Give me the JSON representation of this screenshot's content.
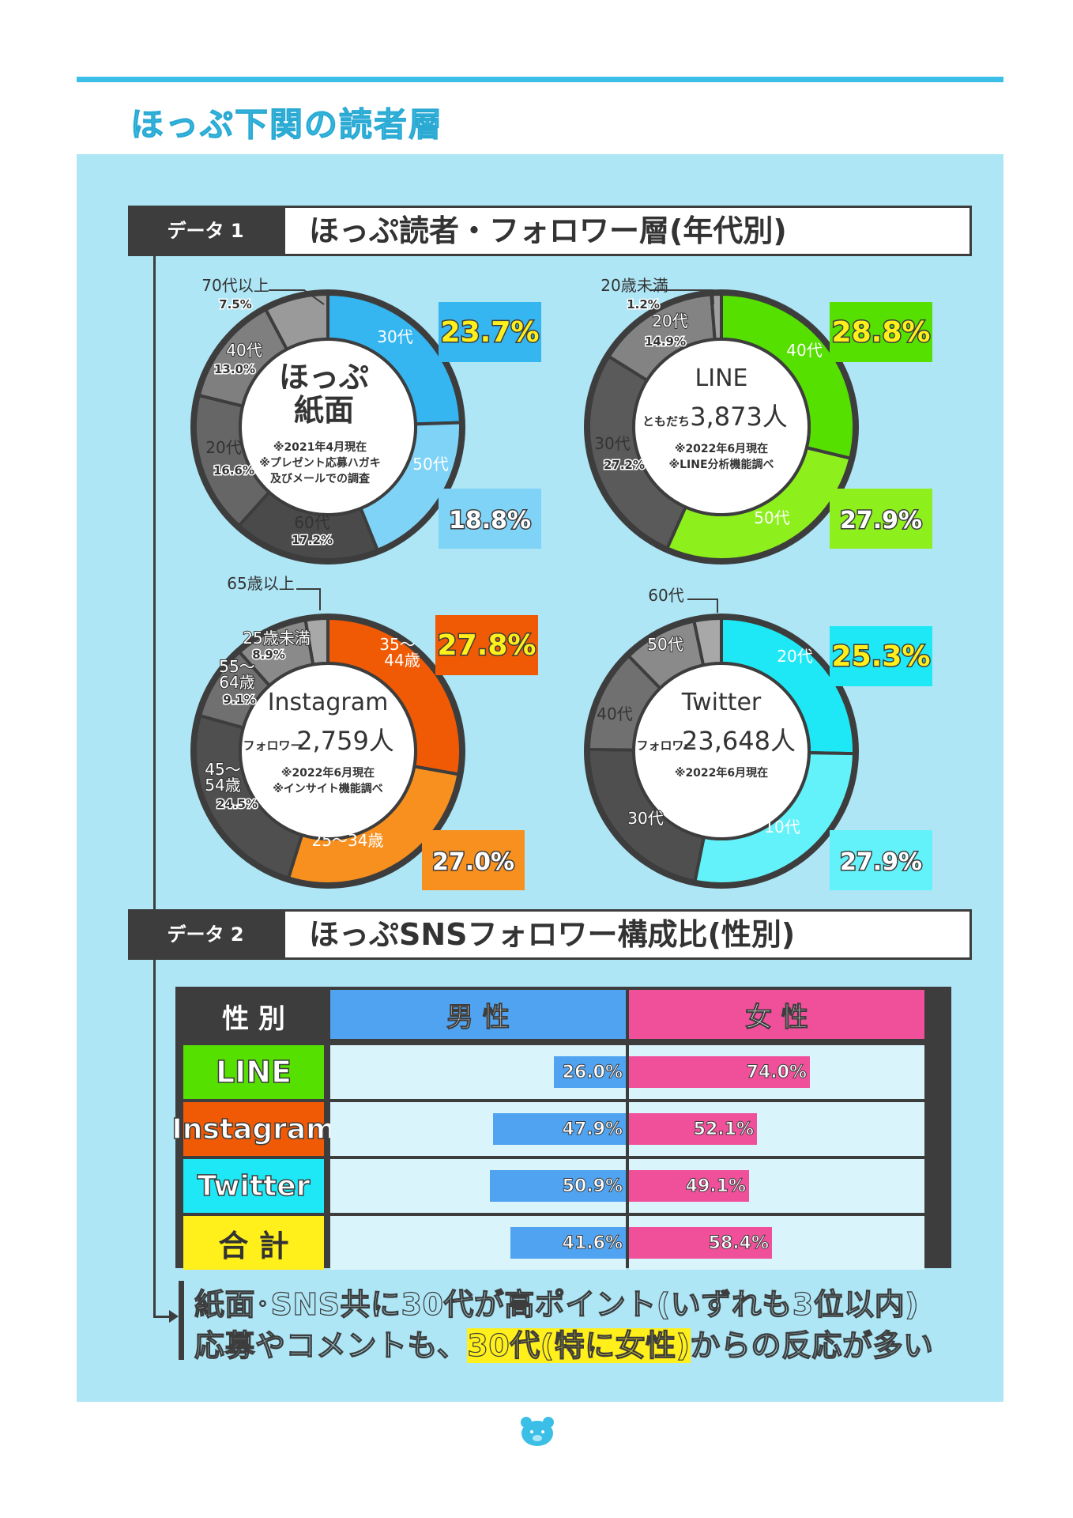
{
  "page": {
    "title": "ほっぷ下関の読者層"
  },
  "section1": {
    "tag": "データ 1",
    "title": "ほっぷ読者・フォロワー層(年代別)"
  },
  "section2": {
    "tag": "データ 2",
    "title": "ほっぷSNSフォロワー構成比(性別)"
  },
  "chart_data": [
    {
      "type": "pie",
      "id": "paper",
      "center": {
        "title": "ほっぷ\n紙面",
        "notes": [
          "※2021年4月現在",
          "※プレゼント応募ハガキ",
          "及びメールでの調査"
        ]
      },
      "slices": [
        {
          "label": "30代",
          "value": 23.7,
          "value_text": "23.7%",
          "color": "#35b6f0",
          "highlight": true,
          "highlight_color": "#ffef1a",
          "badge_bg": "#35b6f0"
        },
        {
          "label": "50代",
          "value": 18.8,
          "value_text": "18.8%",
          "color": "#7fd3f7",
          "highlight": true,
          "highlight_color": "#ffffff",
          "badge_bg": "#7fd3f7"
        },
        {
          "label": "60代",
          "value": 17.2,
          "value_text": "17.2%",
          "color": "#4a4a4a"
        },
        {
          "label": "20代",
          "value": 16.6,
          "value_text": "16.6%",
          "color": "#666666"
        },
        {
          "label": "40代",
          "value": 13.0,
          "value_text": "13.0%",
          "color": "#7f7f7f"
        },
        {
          "label": "70代以上",
          "value": 7.5,
          "value_text": "7.5%",
          "color": "#9a9a9a"
        }
      ]
    },
    {
      "type": "pie",
      "id": "line",
      "center": {
        "title": "LINE",
        "prefix": "ともだち",
        "count": "3,873人",
        "notes": [
          "※2022年6月現在",
          "※LINE分析機能調べ"
        ]
      },
      "slices": [
        {
          "label": "40代",
          "value": 28.8,
          "value_text": "28.8%",
          "color": "#55e000",
          "highlight": true,
          "highlight_color": "#ffef1a",
          "badge_bg": "#55e000"
        },
        {
          "label": "50代",
          "value": 27.9,
          "value_text": "27.9%",
          "color": "#8df01d",
          "highlight": true,
          "highlight_color": "#ffffff",
          "badge_bg": "#8df01d"
        },
        {
          "label": "30代",
          "value": 27.2,
          "value_text": "27.2%",
          "color": "#5a5a5a"
        },
        {
          "label": "20代",
          "value": 14.9,
          "value_text": "14.9%",
          "color": "#838383"
        },
        {
          "label": "20歳未満",
          "value": 1.2,
          "value_text": "1.2%",
          "color": "#a0a0a0"
        }
      ]
    },
    {
      "type": "pie",
      "id": "instagram",
      "center": {
        "title": "Instagram",
        "prefix": "フォロワー",
        "count": "2,759人",
        "notes": [
          "※2022年6月現在",
          "※インサイト機能調べ"
        ]
      },
      "slices": [
        {
          "label": "35～44歳",
          "value": 27.8,
          "value_text": "27.8%",
          "color": "#f05a05",
          "highlight": true,
          "highlight_color": "#ffef1a",
          "badge_bg": "#f05a05"
        },
        {
          "label": "25～34歳",
          "value": 27.0,
          "value_text": "27.0%",
          "color": "#f7901e",
          "highlight": true,
          "highlight_color": "#ffffff",
          "badge_bg": "#f7901e"
        },
        {
          "label": "45～54歳",
          "value": 24.5,
          "value_text": "24.5%",
          "color": "#4f4f4f"
        },
        {
          "label": "55～64歳",
          "value": 9.1,
          "value_text": "9.1%",
          "color": "#707070"
        },
        {
          "label": "25歳未満",
          "value": 8.9,
          "value_text": "8.9%",
          "color": "#8a8a8a"
        },
        {
          "label": "65歳以上",
          "value": 2.7,
          "value_text": "2.7%",
          "color": "#a8a8a8"
        }
      ]
    },
    {
      "type": "pie",
      "id": "twitter",
      "center": {
        "title": "Twitter",
        "prefix": "フォロワー",
        "count": "23,648人",
        "notes": [
          "※2022年6月現在"
        ]
      },
      "slices": [
        {
          "label": "20代",
          "value": 25.3,
          "value_text": "25.3%",
          "color": "#1ee8f5",
          "highlight": true,
          "highlight_color": "#ffef1a",
          "badge_bg": "#1ee8f5"
        },
        {
          "label": "10代",
          "value": 27.9,
          "value_text": "27.9%",
          "color": "#63f2fa",
          "highlight": true,
          "highlight_color": "#ffffff",
          "badge_bg": "#63f2fa"
        },
        {
          "label": "30代",
          "value": 22.0,
          "color": "#4f4f4f"
        },
        {
          "label": "40代",
          "value": 12.5,
          "color": "#707070"
        },
        {
          "label": "50代",
          "value": 9.0,
          "color": "#8a8a8a"
        },
        {
          "label": "60代",
          "value": 3.3,
          "color": "#a8a8a8"
        }
      ]
    },
    {
      "type": "bar",
      "id": "gender",
      "header": {
        "label": "性 別",
        "male": "男 性",
        "female": "女 性"
      },
      "colors": {
        "male": "#4fa3f0",
        "female": "#f0509a",
        "male_head": "#4fa3f0",
        "female_head": "#f0509a"
      },
      "rows": [
        {
          "name": "LINE",
          "name_bg": "#55e000",
          "male": 26.0,
          "female": 74.0,
          "male_text": "26.0%",
          "female_text": "74.0%"
        },
        {
          "name": "Instagram",
          "name_bg": "#f05a05",
          "male": 47.9,
          "female": 52.1,
          "male_text": "47.9%",
          "female_text": "52.1%"
        },
        {
          "name": "Twitter",
          "name_bg": "#1ee8f5",
          "male": 50.9,
          "female": 49.1,
          "male_text": "50.9%",
          "female_text": "49.1%"
        },
        {
          "name": "合 計",
          "name_bg": "#ffef1a",
          "name_color": "#333333",
          "male": 41.6,
          "female": 58.4,
          "male_text": "41.6%",
          "female_text": "58.4%"
        }
      ]
    }
  ],
  "summary": {
    "line1": "紙面･SNS共に30代が高ポイント(いずれも3位以内)",
    "line2_pre": "応募やコメントも、",
    "line2_hl": "30代(特に女性)",
    "line2_post": "からの反応が多い"
  },
  "icons": {
    "footer": "bear-face-icon"
  }
}
